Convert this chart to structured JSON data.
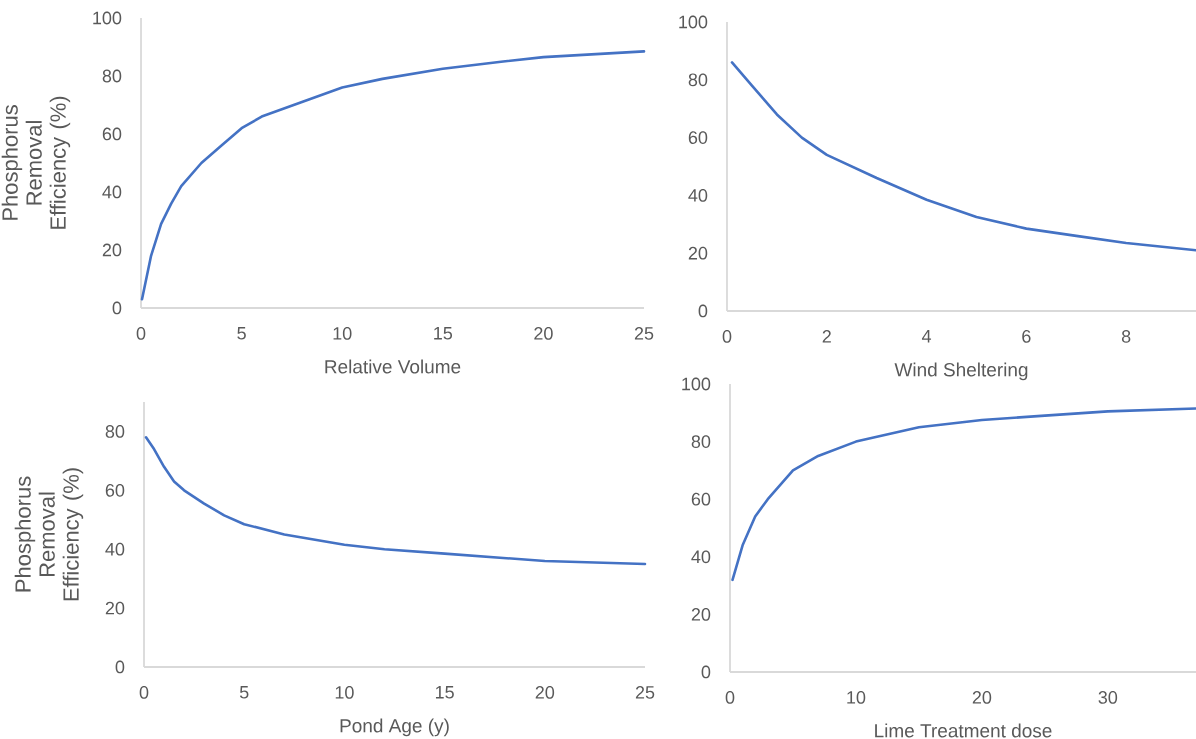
{
  "chart_data": [
    {
      "type": "line",
      "xlabel": "Relative Volume",
      "ylabel": "Phosphorus Removal Efficiency (%)",
      "xlim": [
        0,
        25
      ],
      "ylim": [
        0,
        100
      ],
      "xticks": [
        0,
        5,
        10,
        15,
        20,
        25
      ],
      "yticks": [
        0,
        20,
        40,
        60,
        80,
        100
      ],
      "color": "#4472c4",
      "x": [
        0.05,
        0.5,
        1,
        1.5,
        2,
        3,
        4,
        5,
        6,
        8,
        10,
        12,
        15,
        18,
        20,
        25
      ],
      "values": [
        3,
        18,
        29,
        36,
        42,
        50,
        56,
        62,
        66,
        71,
        76,
        79,
        82.5,
        85,
        86.5,
        88.5
      ]
    },
    {
      "type": "line",
      "xlabel": "Wind Sheltering",
      "xlim": [
        0,
        9.4
      ],
      "ylim": [
        0,
        100
      ],
      "xticks": [
        0,
        2,
        4,
        6,
        8
      ],
      "yticks": [
        0,
        20,
        40,
        60,
        80,
        100
      ],
      "color": "#4472c4",
      "x": [
        0.1,
        0.5,
        1,
        1.5,
        2,
        3,
        4,
        5,
        6,
        7,
        8,
        9.4
      ],
      "values": [
        86,
        78,
        68,
        60,
        54,
        46,
        38.5,
        32.5,
        28.5,
        26,
        23.5,
        21
      ]
    },
    {
      "type": "line",
      "xlabel": "Pond Age (y)",
      "ylabel": "Phosphorus Removal Efficiency (%)",
      "xlim": [
        0,
        25
      ],
      "ylim": [
        0,
        90
      ],
      "xticks": [
        0,
        5,
        10,
        15,
        20,
        25
      ],
      "yticks": [
        0,
        20,
        40,
        60,
        80
      ],
      "color": "#4472c4",
      "x": [
        0.1,
        0.5,
        1,
        1.5,
        2,
        3,
        4,
        5,
        7,
        10,
        12,
        15,
        20,
        25
      ],
      "values": [
        78,
        74,
        68,
        63,
        60,
        55.5,
        51.5,
        48.5,
        45,
        41.5,
        40,
        38.5,
        36,
        35
      ]
    },
    {
      "type": "line",
      "xlabel": "Lime Treatment dose",
      "xlim": [
        0,
        37
      ],
      "ylim": [
        0,
        100
      ],
      "xticks": [
        0,
        10,
        20,
        30
      ],
      "yticks": [
        0,
        20,
        40,
        60,
        80,
        100
      ],
      "color": "#4472c4",
      "x": [
        0.2,
        1,
        2,
        3,
        5,
        7,
        10,
        15,
        20,
        25,
        30,
        37
      ],
      "values": [
        32,
        44,
        54,
        60,
        70,
        75,
        80,
        85,
        87.5,
        89,
        90.5,
        91.5
      ]
    }
  ]
}
